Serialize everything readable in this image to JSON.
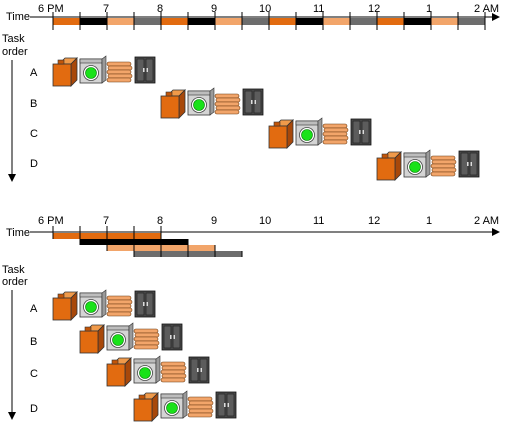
{
  "diagrams": [
    {
      "time_label": "Time",
      "axis_ticks": [
        "6 PM",
        "7",
        "8",
        "9",
        "10",
        "11",
        "12",
        "1",
        "2 AM"
      ],
      "task_label_line1": "Task",
      "task_label_line2": "order",
      "task_labels": [
        "A",
        "B",
        "C",
        "D"
      ]
    },
    {
      "time_label": "Time",
      "axis_ticks": [
        "6 PM",
        "7",
        "8",
        "9",
        "10",
        "11",
        "12",
        "1",
        "2 AM"
      ],
      "task_label_line1": "Task",
      "task_label_line2": "order",
      "task_labels": [
        "A",
        "B",
        "C",
        "D"
      ]
    }
  ],
  "stage_colors": {
    "washer": "#e26b10",
    "dryer": "#000000",
    "folder": "#f2a56a",
    "storer": "#6d6d6d"
  },
  "icons": [
    "washer-icon",
    "dryer-icon",
    "folded-clothes-icon",
    "closet-icon"
  ]
}
